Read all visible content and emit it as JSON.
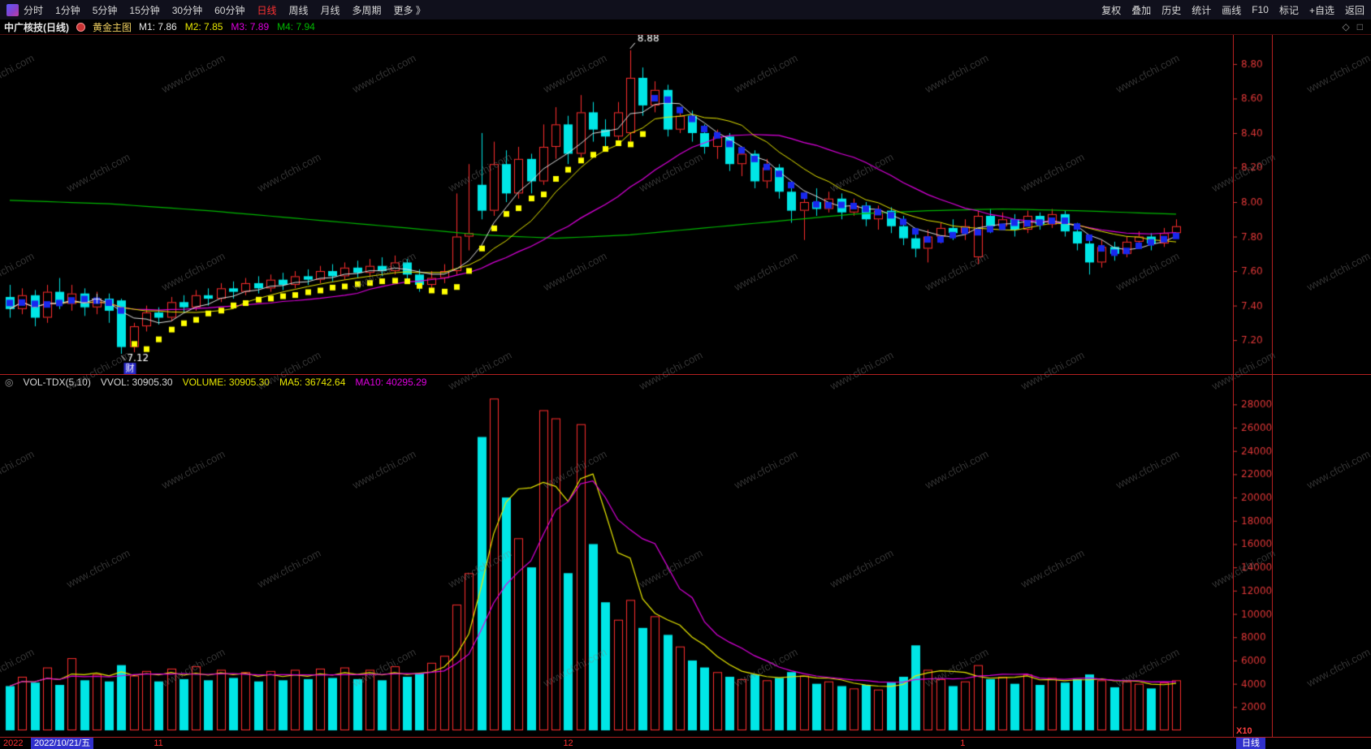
{
  "toolbar": {
    "left_items": [
      "分时",
      "1分钟",
      "5分钟",
      "15分钟",
      "30分钟",
      "60分钟",
      "日线",
      "周线",
      "月线",
      "多周期",
      "更多 》"
    ],
    "active_item": "日线",
    "right_items": [
      "复权",
      "叠加",
      "历史",
      "统计",
      "画线",
      "F10",
      "标记",
      "+自选",
      "返回"
    ]
  },
  "title_bar": {
    "symbol": "中广核技(日线)",
    "indicator_name": "黄金主图",
    "ma_labels": [
      {
        "label": "M1: 7.86",
        "color": "#e8e8e8"
      },
      {
        "label": "M2: 7.85",
        "color": "#e8e800"
      },
      {
        "label": "M3: 7.89",
        "color": "#e000e0"
      },
      {
        "label": "M4: 7.94",
        "color": "#00b800"
      }
    ],
    "right_icons": [
      "◇",
      "□"
    ]
  },
  "volume_header": {
    "icon": "◎",
    "name": "VOL-TDX(5,10)",
    "vvol": "VVOL: 30905.30",
    "volume": "VOLUME: 30905.30",
    "ma5": "MA5: 36742.64",
    "ma10": "MA10: 40295.29"
  },
  "date_axis": {
    "year": "2022",
    "selected_date": "2022/10/21/五",
    "months": [
      {
        "label": "11",
        "bar": 12
      },
      {
        "label": "12",
        "bar": 45
      },
      {
        "label": "1",
        "bar": 77
      }
    ],
    "period_label": "日线",
    "multiplier": "X10"
  },
  "watermark": "www.cfchi.com",
  "colors": {
    "up": "#ff2e2e",
    "down": "#00e6e6",
    "ma1": "#e0e0e0",
    "ma2": "#e8e800",
    "ma3": "#e000e0",
    "ma4": "#00b800",
    "axis_text": "#e03838",
    "dot_yellow": "#ffff00",
    "dot_blue": "#1828ee",
    "badge_bg": "#2828c8"
  },
  "chart_data": {
    "type": "candlestick+volume",
    "title": "中广核技 日线 K线图",
    "price_axis": {
      "min": 7.05,
      "max": 8.95,
      "ticks": [
        8.8,
        8.6,
        8.4,
        8.2,
        8.0,
        7.8,
        7.6,
        7.4,
        7.2
      ]
    },
    "volume_axis": {
      "min": 0,
      "max": 29000,
      "ticks": [
        28000,
        26000,
        24000,
        22000,
        20000,
        18000,
        16000,
        14000,
        12000,
        10000,
        8000,
        6000,
        4000,
        2000
      ]
    },
    "annotations": {
      "high": {
        "bar": 50,
        "text": "8.88"
      },
      "low": {
        "bar": 9,
        "text": "7.12"
      },
      "badge": {
        "bar": 9,
        "text": "财"
      },
      "cross": {
        "bar": 7,
        "price": 7.44
      }
    },
    "ma_periods": {
      "m1": 5,
      "m2": 10,
      "m3": 20
    },
    "m4_points": [
      [
        0,
        8.01
      ],
      [
        8,
        7.99
      ],
      [
        16,
        7.95
      ],
      [
        24,
        7.9
      ],
      [
        32,
        7.85
      ],
      [
        38,
        7.81
      ],
      [
        44,
        7.79
      ],
      [
        50,
        7.81
      ],
      [
        56,
        7.85
      ],
      [
        62,
        7.89
      ],
      [
        68,
        7.93
      ],
      [
        74,
        7.95
      ],
      [
        80,
        7.96
      ],
      [
        86,
        7.95
      ],
      [
        94,
        7.93
      ]
    ],
    "dot_segments": [
      {
        "from": 0,
        "to": 9,
        "color": "blue"
      },
      {
        "from": 10,
        "to": 51,
        "color": "yellow"
      },
      {
        "from": 52,
        "to": 94,
        "color": "blue"
      }
    ],
    "candles": [
      [
        7.45,
        7.52,
        7.33,
        7.38,
        3800
      ],
      [
        7.38,
        7.5,
        7.35,
        7.46,
        4600
      ],
      [
        7.46,
        7.49,
        7.28,
        7.33,
        4100
      ],
      [
        7.33,
        7.52,
        7.3,
        7.48,
        5400
      ],
      [
        7.48,
        7.56,
        7.38,
        7.41,
        3900
      ],
      [
        7.41,
        7.52,
        7.37,
        7.47,
        6200
      ],
      [
        7.47,
        7.5,
        7.34,
        7.39,
        4300
      ],
      [
        7.39,
        7.48,
        7.35,
        7.44,
        4800
      ],
      [
        7.44,
        7.47,
        7.3,
        7.37,
        4200
      ],
      [
        7.43,
        7.44,
        7.12,
        7.16,
        5600
      ],
      [
        7.16,
        7.3,
        7.13,
        7.28,
        4700
      ],
      [
        7.28,
        7.4,
        7.25,
        7.36,
        5100
      ],
      [
        7.36,
        7.39,
        7.29,
        7.33,
        4200
      ],
      [
        7.33,
        7.45,
        7.31,
        7.42,
        5300
      ],
      [
        7.42,
        7.46,
        7.36,
        7.39,
        4400
      ],
      [
        7.39,
        7.49,
        7.37,
        7.46,
        5500
      ],
      [
        7.46,
        7.5,
        7.4,
        7.44,
        4300
      ],
      [
        7.44,
        7.53,
        7.42,
        7.5,
        5200
      ],
      [
        7.5,
        7.54,
        7.44,
        7.48,
        4500
      ],
      [
        7.48,
        7.56,
        7.46,
        7.53,
        5000
      ],
      [
        7.53,
        7.57,
        7.47,
        7.5,
        4200
      ],
      [
        7.5,
        7.58,
        7.48,
        7.55,
        5100
      ],
      [
        7.55,
        7.59,
        7.49,
        7.52,
        4300
      ],
      [
        7.52,
        7.6,
        7.5,
        7.57,
        5200
      ],
      [
        7.57,
        7.61,
        7.52,
        7.55,
        4400
      ],
      [
        7.55,
        7.63,
        7.53,
        7.6,
        5300
      ],
      [
        7.6,
        7.64,
        7.54,
        7.57,
        4500
      ],
      [
        7.57,
        7.65,
        7.55,
        7.62,
        5400
      ],
      [
        7.62,
        7.66,
        7.56,
        7.59,
        4400
      ],
      [
        7.59,
        7.67,
        7.57,
        7.63,
        5200
      ],
      [
        7.63,
        7.68,
        7.57,
        7.6,
        4300
      ],
      [
        7.6,
        7.69,
        7.58,
        7.65,
        5500
      ],
      [
        7.65,
        7.67,
        7.54,
        7.58,
        4600
      ],
      [
        7.58,
        7.61,
        7.48,
        7.52,
        4900
      ],
      [
        7.52,
        7.6,
        7.5,
        7.56,
        5800
      ],
      [
        7.56,
        7.64,
        7.53,
        7.6,
        6400
      ],
      [
        7.6,
        8.05,
        7.58,
        7.8,
        10800
      ],
      [
        7.8,
        8.22,
        7.72,
        7.82,
        13500
      ],
      [
        8.1,
        8.4,
        7.9,
        7.95,
        25200
      ],
      [
        7.95,
        8.35,
        7.92,
        8.22,
        28500
      ],
      [
        8.22,
        8.3,
        8.0,
        8.05,
        20000
      ],
      [
        8.05,
        8.32,
        8.02,
        8.25,
        16500
      ],
      [
        8.25,
        8.28,
        8.05,
        8.12,
        14000
      ],
      [
        8.12,
        8.45,
        8.1,
        8.32,
        27500
      ],
      [
        8.32,
        8.55,
        8.25,
        8.45,
        26800
      ],
      [
        8.45,
        8.5,
        8.22,
        8.28,
        13500
      ],
      [
        8.28,
        8.62,
        8.26,
        8.52,
        26300
      ],
      [
        8.52,
        8.58,
        8.35,
        8.42,
        16000
      ],
      [
        8.42,
        8.48,
        8.3,
        8.38,
        11000
      ],
      [
        8.38,
        8.58,
        8.36,
        8.52,
        9500
      ],
      [
        8.4,
        8.88,
        8.35,
        8.72,
        11200
      ],
      [
        8.72,
        8.78,
        8.5,
        8.56,
        8800
      ],
      [
        8.56,
        8.7,
        8.52,
        8.65,
        9800
      ],
      [
        8.65,
        8.68,
        8.38,
        8.42,
        8200
      ],
      [
        8.42,
        8.55,
        8.4,
        8.5,
        7200
      ],
      [
        8.5,
        8.53,
        8.35,
        8.4,
        6000
      ],
      [
        8.4,
        8.45,
        8.28,
        8.32,
        5400
      ],
      [
        8.32,
        8.42,
        8.25,
        8.38,
        5000
      ],
      [
        8.38,
        8.4,
        8.18,
        8.22,
        4600
      ],
      [
        8.22,
        8.32,
        8.15,
        8.28,
        4400
      ],
      [
        8.28,
        8.3,
        8.08,
        8.12,
        4800
      ],
      [
        8.12,
        8.25,
        8.08,
        8.2,
        4300
      ],
      [
        8.2,
        8.22,
        8.02,
        8.06,
        4500
      ],
      [
        8.06,
        8.12,
        7.88,
        7.95,
        5000
      ],
      [
        7.95,
        8.05,
        7.78,
        8.0,
        4700
      ],
      [
        8.0,
        8.08,
        7.92,
        7.96,
        4000
      ],
      [
        7.96,
        8.06,
        7.94,
        8.02,
        4200
      ],
      [
        8.02,
        8.05,
        7.9,
        7.94,
        3800
      ],
      [
        7.94,
        8.02,
        7.92,
        7.98,
        3600
      ],
      [
        7.98,
        8.0,
        7.86,
        7.9,
        3900
      ],
      [
        7.9,
        7.98,
        7.84,
        7.95,
        3500
      ],
      [
        7.95,
        7.97,
        7.82,
        7.86,
        4100
      ],
      [
        7.86,
        7.92,
        7.75,
        7.79,
        4600
      ],
      [
        7.79,
        7.85,
        7.68,
        7.73,
        7300
      ],
      [
        7.73,
        7.84,
        7.65,
        7.8,
        5200
      ],
      [
        7.8,
        7.88,
        7.76,
        7.85,
        4400
      ],
      [
        7.85,
        7.9,
        7.78,
        7.82,
        3800
      ],
      [
        7.82,
        7.9,
        7.78,
        7.86,
        4200
      ],
      [
        7.68,
        7.95,
        7.64,
        7.92,
        5600
      ],
      [
        7.92,
        7.96,
        7.82,
        7.86,
        4400
      ],
      [
        7.86,
        7.94,
        7.84,
        7.9,
        4600
      ],
      [
        7.9,
        7.93,
        7.8,
        7.84,
        4000
      ],
      [
        7.84,
        7.95,
        7.82,
        7.92,
        4800
      ],
      [
        7.92,
        7.94,
        7.84,
        7.87,
        3900
      ],
      [
        7.87,
        7.96,
        7.85,
        7.93,
        4500
      ],
      [
        7.93,
        7.95,
        7.8,
        7.83,
        4100
      ],
      [
        7.83,
        7.88,
        7.72,
        7.76,
        4400
      ],
      [
        7.76,
        7.8,
        7.58,
        7.65,
        4800
      ],
      [
        7.65,
        7.78,
        7.62,
        7.74,
        4300
      ],
      [
        7.74,
        7.77,
        7.66,
        7.7,
        3700
      ],
      [
        7.7,
        7.8,
        7.68,
        7.77,
        4200
      ],
      [
        7.77,
        7.83,
        7.74,
        7.8,
        4000
      ],
      [
        7.8,
        7.82,
        7.72,
        7.76,
        3600
      ],
      [
        7.76,
        7.85,
        7.74,
        7.82,
        4100
      ],
      [
        7.82,
        7.9,
        7.8,
        7.86,
        4300
      ]
    ]
  }
}
